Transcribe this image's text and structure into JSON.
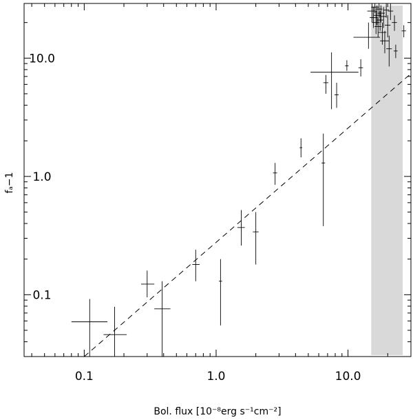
{
  "chart_data": {
    "type": "scatter",
    "xscale": "log",
    "yscale": "log",
    "xlim": [
      0.035,
      30
    ],
    "ylim": [
      0.03,
      29
    ],
    "grid": false,
    "xlabel": "Bol. flux [10⁻⁸erg s⁻¹cm⁻²]",
    "ylabel": "fₐ−1",
    "x_ticks": [
      {
        "value": 0.1,
        "label": "0.1"
      },
      {
        "value": 1.0,
        "label": "1.0"
      },
      {
        "value": 10.0,
        "label": "10.0"
      }
    ],
    "y_ticks": [
      {
        "value": 0.1,
        "label": "0.1"
      },
      {
        "value": 1.0,
        "label": "1.0"
      },
      {
        "value": 10.0,
        "label": "10.0"
      }
    ],
    "shaded_region": {
      "x": [
        15.0,
        26.0
      ],
      "color": "#d9d9d9"
    },
    "fit_line": {
      "style": "dashed",
      "points": [
        [
          0.1,
          0.03
        ],
        [
          30,
          7.4
        ]
      ]
    },
    "points": [
      {
        "x": 0.11,
        "y": 0.059,
        "xerr": [
          0.08,
          0.15
        ],
        "yerr": [
          0.03,
          0.092
        ]
      },
      {
        "x": 0.17,
        "y": 0.046,
        "xerr": [
          0.14,
          0.21
        ],
        "yerr": [
          0.03,
          0.079
        ]
      },
      {
        "x": 0.3,
        "y": 0.123,
        "xerr": [
          0.27,
          0.34
        ],
        "yerr": [
          0.095,
          0.16
        ]
      },
      {
        "x": 0.39,
        "y": 0.076,
        "xerr": [
          0.34,
          0.45
        ],
        "yerr": [
          0.03,
          0.13
        ]
      },
      {
        "x": 0.7,
        "y": 0.18,
        "xerr": [
          0.66,
          0.75
        ],
        "yerr": [
          0.13,
          0.24
        ]
      },
      {
        "x": 1.08,
        "y": 0.13,
        "xerr": [
          1.05,
          1.11
        ],
        "yerr": [
          0.055,
          0.2
        ]
      },
      {
        "x": 1.55,
        "y": 0.37,
        "xerr": [
          1.45,
          1.65
        ],
        "yerr": [
          0.26,
          0.52
        ]
      },
      {
        "x": 2.0,
        "y": 0.34,
        "xerr": [
          1.9,
          2.1
        ],
        "yerr": [
          0.18,
          0.5
        ]
      },
      {
        "x": 2.8,
        "y": 1.07,
        "xerr": [
          2.7,
          2.9
        ],
        "yerr": [
          0.85,
          1.3
        ]
      },
      {
        "x": 4.4,
        "y": 1.75,
        "xerr": [
          4.3,
          4.5
        ],
        "yerr": [
          1.45,
          2.1
        ]
      },
      {
        "x": 6.5,
        "y": 1.3,
        "xerr": [
          6.3,
          6.7
        ],
        "yerr": [
          0.38,
          2.3
        ]
      },
      {
        "x": 6.8,
        "y": 6.2,
        "xerr": [
          6.5,
          7.1
        ],
        "yerr": [
          5.0,
          7.2
        ]
      },
      {
        "x": 7.5,
        "y": 7.6,
        "xerr": [
          5.2,
          12.0
        ],
        "yerr": [
          3.7,
          11.2
        ]
      },
      {
        "x": 8.2,
        "y": 4.9,
        "xerr": [
          7.9,
          8.5
        ],
        "yerr": [
          3.8,
          6.2
        ]
      },
      {
        "x": 9.8,
        "y": 8.6,
        "xerr": [
          9.5,
          10.1
        ],
        "yerr": [
          7.8,
          9.6
        ]
      },
      {
        "x": 12.5,
        "y": 8.3,
        "xerr": [
          12.0,
          13.0
        ],
        "yerr": [
          7.0,
          9.8
        ]
      },
      {
        "x": 14.3,
        "y": 15.0,
        "xerr": [
          11.0,
          17.5
        ],
        "yerr": [
          12.0,
          20.0
        ]
      },
      {
        "x": 15.2,
        "y": 25.0,
        "xerr": [
          14.0,
          16.5
        ],
        "yerr": [
          20.0,
          29.0
        ]
      },
      {
        "x": 15.6,
        "y": 22.0,
        "xerr": [
          14.6,
          16.8
        ],
        "yerr": [
          18.0,
          27.0
        ]
      },
      {
        "x": 16.0,
        "y": 27.0,
        "xerr": [
          15.0,
          17.0
        ],
        "yerr": [
          24.0,
          29.0
        ]
      },
      {
        "x": 16.3,
        "y": 20.0,
        "xerr": [
          15.3,
          17.3
        ],
        "yerr": [
          16.0,
          25.0
        ]
      },
      {
        "x": 16.6,
        "y": 23.0,
        "xerr": [
          15.6,
          17.8
        ],
        "yerr": [
          19.0,
          28.0
        ]
      },
      {
        "x": 16.9,
        "y": 18.5,
        "xerr": [
          15.9,
          18.0
        ],
        "yerr": [
          15.0,
          22.0
        ]
      },
      {
        "x": 17.2,
        "y": 26.0,
        "xerr": [
          16.2,
          18.2
        ],
        "yerr": [
          22.0,
          29.0
        ]
      },
      {
        "x": 17.5,
        "y": 21.0,
        "xerr": [
          16.5,
          18.6
        ],
        "yerr": [
          17.0,
          25.0
        ]
      },
      {
        "x": 17.8,
        "y": 24.0,
        "xerr": [
          16.8,
          19.0
        ],
        "yerr": [
          20.0,
          28.0
        ]
      },
      {
        "x": 18.2,
        "y": 16.5,
        "xerr": [
          17.0,
          19.5
        ],
        "yerr": [
          13.0,
          20.0
        ]
      },
      {
        "x": 18.6,
        "y": 22.5,
        "xerr": [
          17.6,
          19.6
        ],
        "yerr": [
          18.0,
          27.0
        ]
      },
      {
        "x": 19.0,
        "y": 14.0,
        "xerr": [
          17.5,
          20.5
        ],
        "yerr": [
          11.0,
          17.0
        ]
      },
      {
        "x": 19.5,
        "y": 25.5,
        "xerr": [
          18.5,
          20.5
        ],
        "yerr": [
          22.0,
          29.0
        ]
      },
      {
        "x": 20.0,
        "y": 19.0,
        "xerr": [
          19.0,
          21.0
        ],
        "yerr": [
          15.0,
          23.0
        ]
      },
      {
        "x": 20.5,
        "y": 12.0,
        "xerr": [
          19.5,
          21.5
        ],
        "yerr": [
          8.5,
          15.5
        ]
      },
      {
        "x": 21.0,
        "y": 25.0,
        "xerr": [
          20.0,
          22.0
        ],
        "yerr": [
          21.0,
          29.0
        ]
      },
      {
        "x": 22.5,
        "y": 20.0,
        "xerr": [
          21.5,
          23.5
        ],
        "yerr": [
          17.0,
          23.0
        ]
      },
      {
        "x": 23.0,
        "y": 11.5,
        "xerr": [
          22.2,
          23.8
        ],
        "yerr": [
          10.0,
          13.0
        ]
      },
      {
        "x": 26.5,
        "y": 17.0,
        "xerr": [
          25.5,
          27.5
        ],
        "yerr": [
          15.0,
          19.0
        ]
      }
    ]
  }
}
